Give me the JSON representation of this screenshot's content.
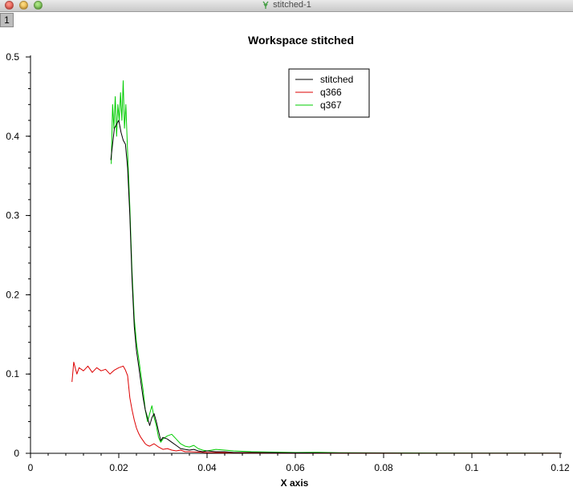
{
  "window": {
    "title": "stitched-1"
  },
  "tab": {
    "label": "1"
  },
  "chart_data": {
    "type": "line",
    "title": "Workspace stitched",
    "xlabel": "X axis",
    "ylabel": "",
    "xlim": [
      0,
      0.12
    ],
    "ylim": [
      0,
      0.5
    ],
    "xticks": [
      0,
      0.02,
      0.04,
      0.06,
      0.08,
      0.1,
      0.12
    ],
    "xtick_labels": [
      "0",
      "0.02",
      "0.04",
      "0.06",
      "0.08",
      "0.1",
      "0.12"
    ],
    "yticks": [
      0,
      0.1,
      0.2,
      0.3,
      0.4,
      0.5
    ],
    "ytick_labels": [
      "0",
      "0.1",
      "0.2",
      "0.3",
      "0.4",
      "0.5"
    ],
    "grid": false,
    "legend_position": "top-center",
    "series": [
      {
        "name": "stitched",
        "color": "#000000",
        "x": [
          0.0182,
          0.019,
          0.02,
          0.0205,
          0.021,
          0.0215,
          0.022,
          0.0225,
          0.023,
          0.0235,
          0.024,
          0.0245,
          0.025,
          0.0255,
          0.026,
          0.0265,
          0.027,
          0.0275,
          0.028,
          0.0285,
          0.029,
          0.0295,
          0.03,
          0.031,
          0.032,
          0.033,
          0.034,
          0.035,
          0.036,
          0.037,
          0.038,
          0.039,
          0.04,
          0.042,
          0.044,
          0.046,
          0.048,
          0.05,
          0.055,
          0.06,
          0.065,
          0.07,
          0.08,
          0.09,
          0.1,
          0.11,
          0.12
        ],
        "y": [
          0.37,
          0.41,
          0.42,
          0.405,
          0.395,
          0.39,
          0.36,
          0.3,
          0.22,
          0.16,
          0.13,
          0.11,
          0.09,
          0.07,
          0.055,
          0.045,
          0.035,
          0.045,
          0.05,
          0.04,
          0.028,
          0.016,
          0.02,
          0.018,
          0.014,
          0.01,
          0.006,
          0.005,
          0.004,
          0.005,
          0.003,
          0.002,
          0.003,
          0.002,
          0.002,
          0.001,
          0.001,
          0.001,
          0.0008,
          0.0005,
          0.0004,
          0.0003,
          0.0002,
          0.0001,
          0.0001,
          0.0001,
          0.0001
        ]
      },
      {
        "name": "q366",
        "color": "#dd0000",
        "x": [
          0.0094,
          0.0098,
          0.0105,
          0.011,
          0.012,
          0.013,
          0.014,
          0.015,
          0.016,
          0.017,
          0.018,
          0.019,
          0.02,
          0.021,
          0.0215,
          0.022,
          0.0225,
          0.023,
          0.0235,
          0.024,
          0.0245,
          0.025,
          0.0255,
          0.026,
          0.0265,
          0.027,
          0.028,
          0.029,
          0.03,
          0.031,
          0.032,
          0.033,
          0.034,
          0.035,
          0.036,
          0.038,
          0.04,
          0.045,
          0.05,
          0.06,
          0.07,
          0.08,
          0.1,
          0.12
        ],
        "y": [
          0.09,
          0.115,
          0.1,
          0.108,
          0.104,
          0.11,
          0.102,
          0.108,
          0.104,
          0.106,
          0.1,
          0.105,
          0.108,
          0.11,
          0.105,
          0.098,
          0.07,
          0.055,
          0.042,
          0.032,
          0.025,
          0.02,
          0.016,
          0.012,
          0.01,
          0.009,
          0.012,
          0.008,
          0.005,
          0.006,
          0.004,
          0.003,
          0.004,
          0.002,
          0.002,
          0.0015,
          0.001,
          0.0008,
          0.0005,
          0.0004,
          0.0003,
          0.0002,
          0.0001,
          0.0001
        ]
      },
      {
        "name": "q367",
        "color": "#00cc00",
        "x": [
          0.0183,
          0.0186,
          0.0189,
          0.0192,
          0.0195,
          0.0198,
          0.0201,
          0.0204,
          0.0207,
          0.021,
          0.0213,
          0.0216,
          0.022,
          0.0225,
          0.023,
          0.0235,
          0.024,
          0.0245,
          0.025,
          0.0255,
          0.026,
          0.0265,
          0.027,
          0.0275,
          0.028,
          0.0285,
          0.029,
          0.0295,
          0.03,
          0.031,
          0.032,
          0.033,
          0.034,
          0.035,
          0.036,
          0.037,
          0.038,
          0.039,
          0.04,
          0.042,
          0.044,
          0.046,
          0.05,
          0.055,
          0.06,
          0.065,
          0.07,
          0.08,
          0.09,
          0.1,
          0.11,
          0.12
        ],
        "y": [
          0.365,
          0.44,
          0.41,
          0.45,
          0.4,
          0.44,
          0.42,
          0.455,
          0.42,
          0.47,
          0.41,
          0.44,
          0.38,
          0.31,
          0.23,
          0.17,
          0.14,
          0.12,
          0.1,
          0.08,
          0.055,
          0.04,
          0.05,
          0.06,
          0.045,
          0.035,
          0.02,
          0.014,
          0.018,
          0.022,
          0.024,
          0.018,
          0.012,
          0.009,
          0.008,
          0.01,
          0.006,
          0.004,
          0.003,
          0.005,
          0.004,
          0.003,
          0.002,
          0.0015,
          0.001,
          0.0012,
          0.0008,
          0.0005,
          0.0004,
          0.0003,
          0.0002,
          0.0001
        ]
      }
    ]
  }
}
